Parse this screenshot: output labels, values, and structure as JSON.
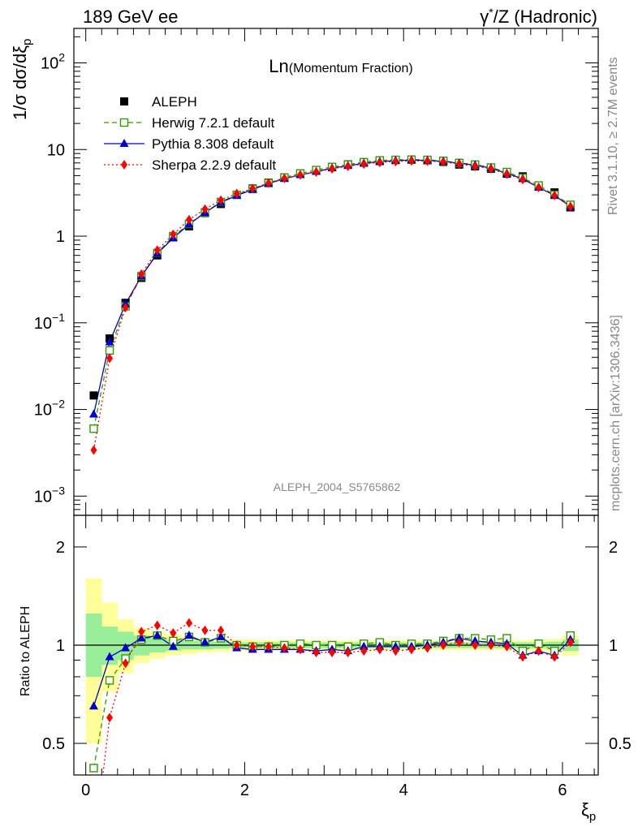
{
  "header": {
    "left": "189 GeV ee",
    "right_prefix": "γ",
    "right_star": "*",
    "right_suffix": "/Z (Hadronic)"
  },
  "side": {
    "rivet": "Rivet 3.1.10, ≥ 2.7M events",
    "mcplots": "mcplots.cern.ch [arXiv:1306.3436]"
  },
  "chart_data": [
    {
      "type": "scatter",
      "title_main": "Ln",
      "title_paren": "(Momentum Fraction)",
      "ylabel": "1/σ dσ/dξ",
      "ylabel_sub": "p",
      "yscale": "log",
      "ylim": [
        0.0006,
        250
      ],
      "xlim": [
        -0.15,
        6.45
      ],
      "watermark": "ALEPH_2004_S5765862",
      "y_ticks": [
        {
          "base": "10",
          "exp": "2",
          "v": 100
        },
        {
          "base": "10",
          "exp": "",
          "v": 10
        },
        {
          "base": "1",
          "exp": "",
          "v": 1
        },
        {
          "base": "10",
          "exp": "−1",
          "v": 0.1
        },
        {
          "base": "10",
          "exp": "−2",
          "v": 0.01
        },
        {
          "base": "10",
          "exp": "−3",
          "v": 0.001
        }
      ],
      "legend_position": "top-left",
      "x": [
        0.1,
        0.3,
        0.5,
        0.7,
        0.9,
        1.1,
        1.3,
        1.5,
        1.7,
        1.9,
        2.1,
        2.3,
        2.5,
        2.7,
        2.9,
        3.1,
        3.3,
        3.5,
        3.7,
        3.9,
        4.1,
        4.3,
        4.5,
        4.7,
        4.9,
        5.1,
        5.3,
        5.5,
        5.7,
        5.9,
        6.1
      ],
      "series": [
        {
          "name": "ALEPH",
          "color": "#000000",
          "marker": "square-filled",
          "values": [
            0.0145,
            0.066,
            0.17,
            0.33,
            0.6,
            0.97,
            1.3,
            1.85,
            2.35,
            3.0,
            3.55,
            4.15,
            4.75,
            5.25,
            5.8,
            6.3,
            6.75,
            7.05,
            7.35,
            7.55,
            7.6,
            7.5,
            7.2,
            6.7,
            6.4,
            6.0,
            5.25,
            4.9,
            3.8,
            3.2,
            2.15
          ]
        },
        {
          "name": "Herwig 7.2.1 default",
          "color": "#339900",
          "marker": "square-open",
          "dash": "6,4",
          "values": [
            0.006,
            0.048,
            0.155,
            0.345,
            0.64,
            1.0,
            1.38,
            1.88,
            2.48,
            3.0,
            3.5,
            4.1,
            4.75,
            5.3,
            5.8,
            6.3,
            6.7,
            7.15,
            7.5,
            7.6,
            7.65,
            7.6,
            7.4,
            7.0,
            6.7,
            6.2,
            5.5,
            4.7,
            3.85,
            3.0,
            2.3
          ]
        },
        {
          "name": "Pythia 8.308 default",
          "color": "#0000cc",
          "marker": "triangle-filled",
          "values": [
            0.0088,
            0.06,
            0.165,
            0.345,
            0.63,
            0.95,
            1.37,
            1.87,
            2.45,
            2.95,
            3.45,
            4.05,
            4.6,
            5.1,
            5.55,
            6.1,
            6.5,
            6.95,
            7.25,
            7.45,
            7.55,
            7.5,
            7.3,
            6.95,
            6.6,
            6.1,
            5.3,
            4.6,
            3.65,
            2.95,
            2.2
          ]
        },
        {
          "name": "Sherpa 2.2.9 default",
          "color": "#ff0000",
          "marker": "diamond-filled",
          "dash": "2,3",
          "values": [
            0.0034,
            0.039,
            0.15,
            0.365,
            0.69,
            1.05,
            1.55,
            2.05,
            2.6,
            3.1,
            3.55,
            4.1,
            4.65,
            5.1,
            5.5,
            6.0,
            6.4,
            6.8,
            7.1,
            7.25,
            7.4,
            7.35,
            7.2,
            6.8,
            6.4,
            6.0,
            5.2,
            4.5,
            3.65,
            2.95,
            2.2
          ]
        }
      ]
    },
    {
      "type": "line",
      "ylabel": "Ratio to ALEPH",
      "xlabel": "ξ",
      "xlabel_sub": "p",
      "yscale": "log",
      "ylim": [
        0.4,
        2.5
      ],
      "xlim": [
        -0.15,
        6.45
      ],
      "x_ticks": [
        {
          "v": 0,
          "label": "0"
        },
        {
          "v": 2,
          "label": "2"
        },
        {
          "v": 4,
          "label": "4"
        },
        {
          "v": 6,
          "label": "6"
        }
      ],
      "y_ticks": [
        {
          "v": 2,
          "label": "2"
        },
        {
          "v": 1,
          "label": "1"
        },
        {
          "v": 0.5,
          "label": "0.5"
        }
      ],
      "band_inner_color": "#99ee99",
      "band_outer_color": "#ffff99",
      "band_x_edges": [
        0.0,
        0.2,
        0.4,
        0.6,
        0.8,
        1.0,
        1.2,
        1.4,
        1.6,
        1.8,
        2.0,
        2.2,
        2.4,
        2.6,
        2.8,
        3.0,
        3.2,
        3.4,
        3.6,
        3.8,
        4.0,
        4.2,
        4.4,
        4.6,
        4.8,
        5.0,
        5.2,
        5.4,
        5.6,
        5.8,
        6.0,
        6.2
      ],
      "band_inner": [
        [
          0.8,
          1.25
        ],
        [
          0.87,
          1.14
        ],
        [
          0.9,
          1.1
        ],
        [
          0.93,
          1.07
        ],
        [
          0.95,
          1.05
        ],
        [
          0.96,
          1.04
        ],
        [
          0.97,
          1.03
        ],
        [
          0.97,
          1.03
        ],
        [
          0.975,
          1.025
        ],
        [
          0.98,
          1.02
        ],
        [
          0.98,
          1.02
        ],
        [
          0.98,
          1.02
        ],
        [
          0.98,
          1.02
        ],
        [
          0.98,
          1.02
        ],
        [
          0.98,
          1.02
        ],
        [
          0.98,
          1.02
        ],
        [
          0.98,
          1.02
        ],
        [
          0.98,
          1.02
        ],
        [
          0.98,
          1.02
        ],
        [
          0.98,
          1.02
        ],
        [
          0.98,
          1.02
        ],
        [
          0.98,
          1.02
        ],
        [
          0.98,
          1.02
        ],
        [
          0.98,
          1.02
        ],
        [
          0.98,
          1.02
        ],
        [
          0.98,
          1.02
        ],
        [
          0.98,
          1.02
        ],
        [
          0.98,
          1.02
        ],
        [
          0.98,
          1.02
        ],
        [
          0.975,
          1.025
        ],
        [
          0.96,
          1.04
        ]
      ],
      "band_outer": [
        [
          0.5,
          1.6
        ],
        [
          0.72,
          1.35
        ],
        [
          0.82,
          1.2
        ],
        [
          0.88,
          1.13
        ],
        [
          0.91,
          1.1
        ],
        [
          0.93,
          1.08
        ],
        [
          0.94,
          1.06
        ],
        [
          0.95,
          1.05
        ],
        [
          0.955,
          1.045
        ],
        [
          0.96,
          1.04
        ],
        [
          0.96,
          1.04
        ],
        [
          0.965,
          1.035
        ],
        [
          0.965,
          1.035
        ],
        [
          0.965,
          1.035
        ],
        [
          0.965,
          1.035
        ],
        [
          0.965,
          1.035
        ],
        [
          0.965,
          1.035
        ],
        [
          0.965,
          1.035
        ],
        [
          0.965,
          1.035
        ],
        [
          0.965,
          1.035
        ],
        [
          0.965,
          1.035
        ],
        [
          0.965,
          1.035
        ],
        [
          0.965,
          1.035
        ],
        [
          0.965,
          1.035
        ],
        [
          0.965,
          1.035
        ],
        [
          0.965,
          1.035
        ],
        [
          0.965,
          1.035
        ],
        [
          0.965,
          1.035
        ],
        [
          0.96,
          1.04
        ],
        [
          0.955,
          1.045
        ],
        [
          0.93,
          1.07
        ]
      ],
      "series": [
        {
          "name": "Herwig 7.2.1 default",
          "color": "#339900",
          "marker": "square-open",
          "dash": "6,4",
          "values": [
            0.42,
            0.78,
            0.91,
            1.04,
            1.07,
            1.03,
            1.06,
            1.02,
            1.05,
            1.0,
            0.99,
            0.99,
            1.0,
            1.01,
            1.0,
            1.0,
            0.99,
            1.01,
            1.02,
            1.0,
            1.01,
            1.01,
            1.03,
            1.05,
            1.05,
            1.04,
            1.05,
            0.96,
            1.01,
            0.96,
            1.07
          ]
        },
        {
          "name": "Pythia 8.308 default",
          "color": "#0000cc",
          "marker": "triangle-filled",
          "values": [
            0.65,
            0.92,
            0.98,
            1.05,
            1.07,
            0.99,
            1.07,
            1.02,
            1.06,
            0.98,
            0.97,
            0.97,
            0.97,
            0.97,
            0.96,
            0.97,
            0.96,
            0.99,
            0.99,
            0.99,
            0.99,
            1.0,
            1.02,
            1.05,
            1.03,
            1.02,
            1.01,
            0.93,
            0.96,
            0.93,
            1.04
          ]
        },
        {
          "name": "Sherpa 2.2.9 default",
          "color": "#ff0000",
          "marker": "diamond-filled",
          "dash": "2,3",
          "values": [
            0.23,
            0.6,
            0.88,
            1.1,
            1.15,
            1.09,
            1.17,
            1.11,
            1.11,
            1.0,
            0.99,
            0.99,
            0.98,
            0.97,
            0.95,
            0.95,
            0.95,
            0.96,
            0.97,
            0.96,
            0.97,
            0.98,
            1.0,
            1.02,
            1.0,
            1.0,
            0.99,
            0.92,
            0.96,
            0.92,
            1.02
          ]
        }
      ]
    }
  ]
}
